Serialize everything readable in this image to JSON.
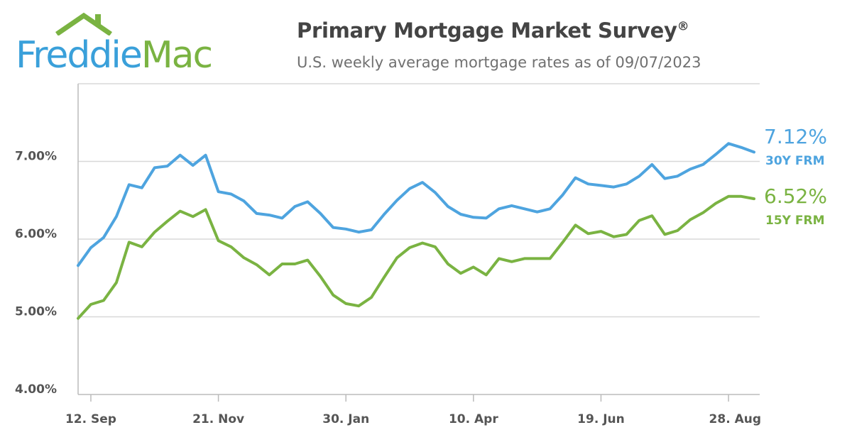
{
  "logo": {
    "word1": "Freddie",
    "word2": "Mac"
  },
  "header": {
    "title": "Primary Mortgage Market Survey",
    "title_mark": "®",
    "subtitle": "U.S. weekly average mortgage rates as of 09/07/2023"
  },
  "colors": {
    "series_30y": "#4ea4df",
    "series_15y": "#7ab342",
    "grid": "#d8d8d8",
    "axis": "#bbbbbb",
    "text": "#555555"
  },
  "chart_data": {
    "type": "line",
    "ylim": [
      4.0,
      8.0
    ],
    "yticks": [
      {
        "value": 4.0,
        "label": "4.00%"
      },
      {
        "value": 5.0,
        "label": "5.00%"
      },
      {
        "value": 6.0,
        "label": "6.00%"
      },
      {
        "value": 7.0,
        "label": "7.00%"
      }
    ],
    "grid": true,
    "xtick_week_index": [
      1,
      11,
      21,
      31,
      41,
      51
    ],
    "xtick_labels": [
      "12. Sep",
      "21. Nov",
      "30. Jan",
      "10. Apr",
      "19. Jun",
      "28. Aug"
    ],
    "series": [
      {
        "name": "30Y FRM",
        "end_value_label": "7.12%",
        "values": [
          5.66,
          5.89,
          6.02,
          6.29,
          6.7,
          6.66,
          6.92,
          6.94,
          7.08,
          6.95,
          7.08,
          6.61,
          6.58,
          6.49,
          6.33,
          6.31,
          6.27,
          6.42,
          6.48,
          6.33,
          6.15,
          6.13,
          6.09,
          6.12,
          6.32,
          6.5,
          6.65,
          6.73,
          6.6,
          6.42,
          6.32,
          6.28,
          6.27,
          6.39,
          6.43,
          6.39,
          6.35,
          6.39,
          6.57,
          6.79,
          6.71,
          6.69,
          6.67,
          6.71,
          6.81,
          6.96,
          6.78,
          6.81,
          6.9,
          6.96,
          7.09,
          7.23,
          7.18,
          7.12
        ]
      },
      {
        "name": "15Y FRM",
        "end_value_label": "6.52%",
        "values": [
          4.98,
          5.16,
          5.21,
          5.44,
          5.96,
          5.9,
          6.09,
          6.23,
          6.36,
          6.29,
          6.38,
          5.98,
          5.9,
          5.76,
          5.67,
          5.54,
          5.68,
          5.68,
          5.73,
          5.52,
          5.28,
          5.17,
          5.14,
          5.25,
          5.51,
          5.76,
          5.89,
          5.95,
          5.9,
          5.68,
          5.56,
          5.64,
          5.54,
          5.75,
          5.71,
          5.75,
          5.75,
          5.75,
          5.96,
          6.18,
          6.07,
          6.1,
          6.03,
          6.06,
          6.24,
          6.3,
          6.06,
          6.11,
          6.25,
          6.34,
          6.46,
          6.55,
          6.55,
          6.52
        ]
      }
    ]
  }
}
